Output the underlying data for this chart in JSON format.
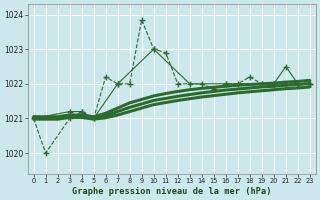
{
  "title": "Graphe pression niveau de la mer (hPa)",
  "background_color": "#cce8ec",
  "grid_color": "#ffffff",
  "line_color": "#2d6a2d",
  "xlim": [
    -0.5,
    23.5
  ],
  "ylim": [
    1019.4,
    1024.3
  ],
  "yticks": [
    1020,
    1021,
    1022,
    1023,
    1024
  ],
  "xticks": [
    0,
    1,
    2,
    3,
    4,
    5,
    6,
    7,
    8,
    9,
    10,
    11,
    12,
    13,
    14,
    15,
    16,
    17,
    18,
    19,
    20,
    21,
    22,
    23
  ],
  "series": [
    {
      "x": [
        0,
        1,
        3,
        4,
        5,
        6,
        7,
        8,
        9,
        10,
        11,
        12,
        14,
        15,
        16,
        17,
        18,
        19,
        20,
        21,
        22,
        23
      ],
      "y": [
        1021.0,
        1020.0,
        1021.0,
        1021.2,
        1021.0,
        1022.2,
        1022.0,
        1022.0,
        1023.85,
        1023.0,
        1022.9,
        1022.0,
        1022.0,
        1021.85,
        1022.0,
        1022.0,
        1022.2,
        1022.0,
        1022.0,
        1022.0,
        1022.0,
        1022.0
      ],
      "linestyle": "--",
      "linewidth": 0.8,
      "marker": "+",
      "markersize": 4
    },
    {
      "x": [
        0,
        3,
        4,
        5,
        7,
        10,
        13,
        16,
        19,
        20,
        21,
        22,
        23
      ],
      "y": [
        1021.0,
        1021.2,
        1021.2,
        1021.0,
        1022.0,
        1023.0,
        1022.0,
        1022.0,
        1022.0,
        1022.0,
        1022.5,
        1022.0,
        1022.0
      ],
      "linestyle": "-",
      "linewidth": 0.8,
      "marker": "+",
      "markersize": 4
    },
    {
      "x": [
        0,
        1,
        2,
        3,
        4,
        5,
        6,
        7,
        8,
        9,
        10,
        11,
        12,
        13,
        14,
        15,
        16,
        17,
        18,
        19,
        20,
        21,
        22,
        23
      ],
      "y": [
        1021.05,
        1021.05,
        1021.05,
        1021.1,
        1021.1,
        1021.05,
        1021.15,
        1021.3,
        1021.45,
        1021.55,
        1021.65,
        1021.72,
        1021.78,
        1021.83,
        1021.87,
        1021.9,
        1021.93,
        1021.96,
        1021.98,
        1022.0,
        1022.02,
        1022.05,
        1022.07,
        1022.1
      ],
      "linestyle": "-",
      "linewidth": 2.2,
      "marker": null,
      "markersize": 0
    },
    {
      "x": [
        0,
        1,
        2,
        3,
        4,
        5,
        6,
        7,
        8,
        9,
        10,
        11,
        12,
        13,
        14,
        15,
        16,
        17,
        18,
        19,
        20,
        21,
        22,
        23
      ],
      "y": [
        1021.02,
        1021.02,
        1021.02,
        1021.07,
        1021.07,
        1021.02,
        1021.08,
        1021.2,
        1021.32,
        1021.42,
        1021.52,
        1021.58,
        1021.64,
        1021.69,
        1021.74,
        1021.78,
        1021.82,
        1021.85,
        1021.88,
        1021.91,
        1021.93,
        1021.96,
        1021.98,
        1022.01
      ],
      "linestyle": "-",
      "linewidth": 2.2,
      "marker": null,
      "markersize": 0
    },
    {
      "x": [
        0,
        1,
        2,
        3,
        4,
        5,
        6,
        7,
        8,
        9,
        10,
        11,
        12,
        13,
        14,
        15,
        16,
        17,
        18,
        19,
        20,
        21,
        22,
        23
      ],
      "y": [
        1020.98,
        1020.98,
        1020.98,
        1021.03,
        1021.03,
        1020.98,
        1021.02,
        1021.1,
        1021.2,
        1021.3,
        1021.4,
        1021.46,
        1021.52,
        1021.57,
        1021.62,
        1021.66,
        1021.7,
        1021.74,
        1021.77,
        1021.8,
        1021.83,
        1021.86,
        1021.88,
        1021.91
      ],
      "linestyle": "-",
      "linewidth": 2.2,
      "marker": null,
      "markersize": 0
    }
  ]
}
